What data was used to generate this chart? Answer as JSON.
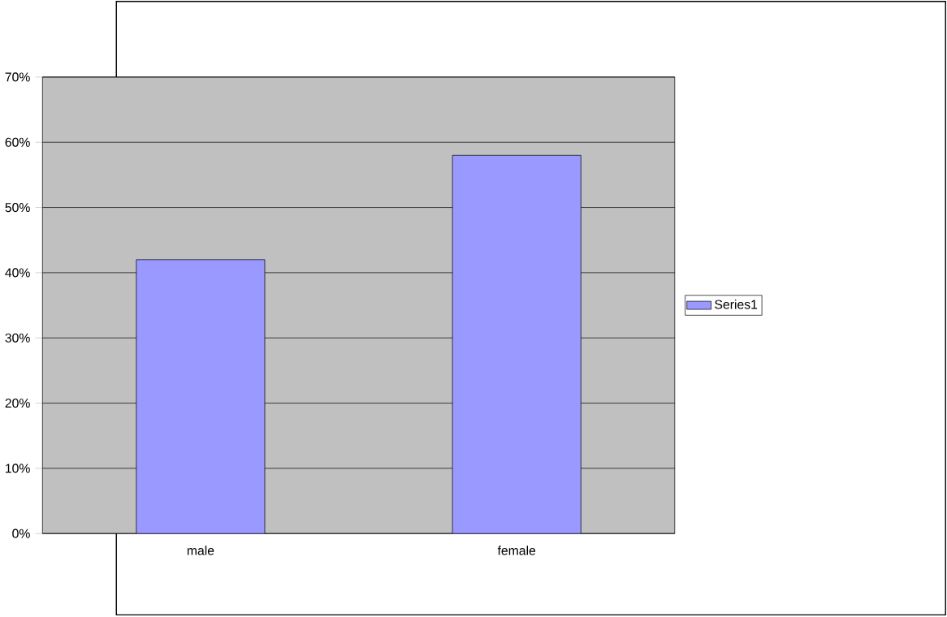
{
  "chart_data": {
    "type": "bar",
    "categories": [
      "male",
      "female"
    ],
    "series": [
      {
        "name": "Series1",
        "color": "#9999ff",
        "values": [
          42,
          58
        ]
      }
    ],
    "ylim": [
      0,
      70
    ],
    "yticks": [
      {
        "value": 0,
        "label": "0%"
      },
      {
        "value": 10,
        "label": "10%"
      },
      {
        "value": 20,
        "label": "20%"
      },
      {
        "value": 30,
        "label": "30%"
      },
      {
        "value": 40,
        "label": "40%"
      },
      {
        "value": 50,
        "label": "50%"
      },
      {
        "value": 60,
        "label": "60%"
      },
      {
        "value": 70,
        "label": "70%"
      }
    ],
    "grid": "y",
    "legend": "right"
  }
}
